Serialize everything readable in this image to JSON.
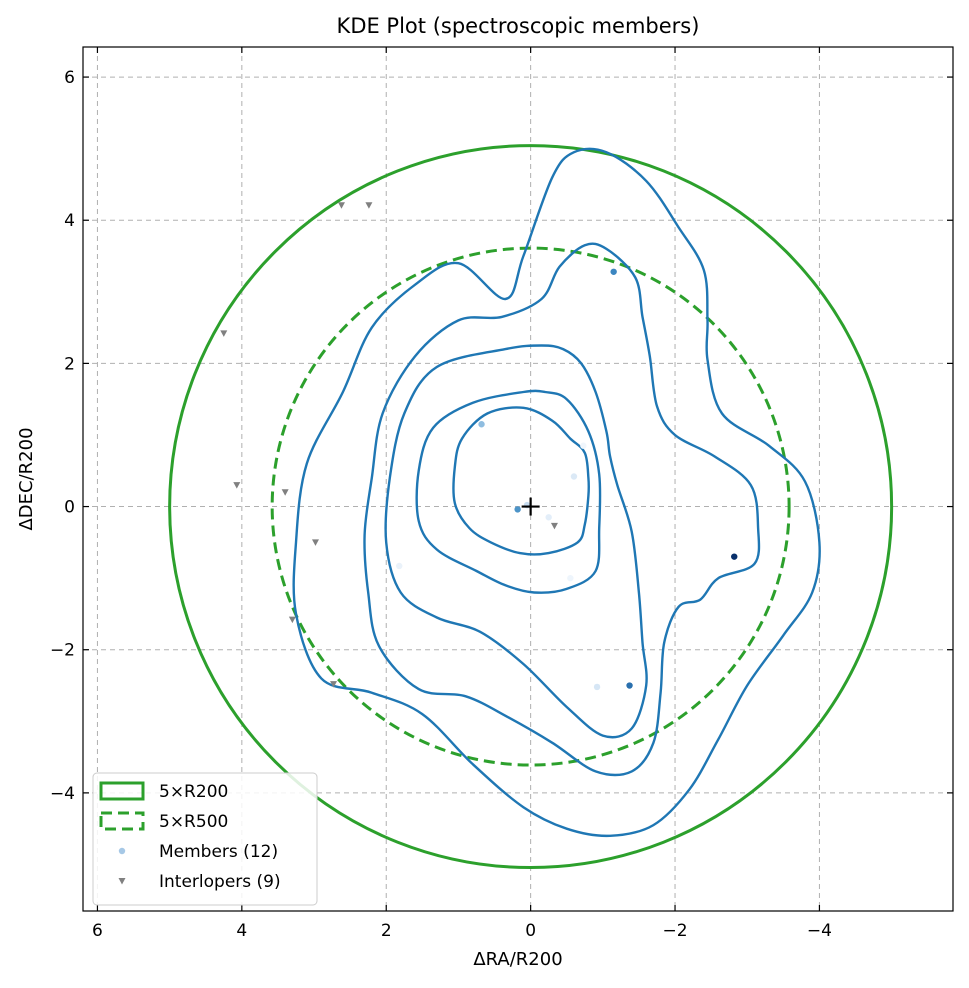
{
  "chart_data": {
    "type": "scatter",
    "title": "KDE Plot (spectroscopic members)",
    "xlabel": "ΔRA/R200",
    "ylabel": "ΔDEC/R200",
    "xlim": [
      6.2,
      -5.85
    ],
    "ylim": [
      -5.65,
      6.42
    ],
    "x_inverted": true,
    "grid": true,
    "xticks": [
      {
        "value": 6,
        "label": "6"
      },
      {
        "value": 4,
        "label": "4"
      },
      {
        "value": 2,
        "label": "2"
      },
      {
        "value": 0,
        "label": "0"
      },
      {
        "value": -2,
        "label": "−2"
      },
      {
        "value": -4,
        "label": "−4"
      }
    ],
    "yticks": [
      {
        "value": 6,
        "label": "6"
      },
      {
        "value": 4,
        "label": "4"
      },
      {
        "value": 2,
        "label": "2"
      },
      {
        "value": 0,
        "label": "0"
      },
      {
        "value": -2,
        "label": "−2"
      },
      {
        "value": -4,
        "label": "−4"
      }
    ],
    "center_marker": {
      "x": 0,
      "y": 0,
      "symbol": "+",
      "color": "#000000"
    },
    "circles": [
      {
        "name": "5×R200",
        "radius": 5.0,
        "style": "solid",
        "color": "#2ca02c"
      },
      {
        "name": "5×R500",
        "radius": 3.58,
        "style": "dashed",
        "color": "#2ca02c"
      }
    ],
    "kde_contour_color": "#1f77b4",
    "kde_contours": [
      [
        [
          0.35,
          2.9
        ],
        [
          0.1,
          3.5
        ],
        [
          -0.3,
          4.6
        ],
        [
          -0.6,
          4.95
        ],
        [
          -1.05,
          4.95
        ],
        [
          -1.6,
          4.55
        ],
        [
          -2.05,
          3.9
        ],
        [
          -2.4,
          3.3
        ],
        [
          -2.45,
          2.6
        ],
        [
          -2.45,
          2.05
        ],
        [
          -2.65,
          1.3
        ],
        [
          -3.3,
          0.85
        ],
        [
          -3.8,
          0.35
        ],
        [
          -4.0,
          -0.5
        ],
        [
          -3.9,
          -1.2
        ],
        [
          -3.5,
          -1.8
        ],
        [
          -3.0,
          -2.5
        ],
        [
          -2.6,
          -3.25
        ],
        [
          -2.2,
          -3.95
        ],
        [
          -1.7,
          -4.45
        ],
        [
          -1.1,
          -4.6
        ],
        [
          -0.5,
          -4.5
        ],
        [
          0.1,
          -4.2
        ],
        [
          0.8,
          -3.6
        ],
        [
          1.5,
          -2.9
        ],
        [
          2.2,
          -2.6
        ],
        [
          2.9,
          -2.4
        ],
        [
          3.25,
          -1.5
        ],
        [
          3.25,
          -0.5
        ],
        [
          3.1,
          0.6
        ],
        [
          2.6,
          1.6
        ],
        [
          2.2,
          2.5
        ],
        [
          1.6,
          3.1
        ],
        [
          1.0,
          3.4
        ],
        [
          0.35,
          2.9
        ]
      ],
      [
        [
          -0.15,
          2.9
        ],
        [
          -0.4,
          3.35
        ],
        [
          -0.75,
          3.65
        ],
        [
          -1.05,
          3.6
        ],
        [
          -1.45,
          3.2
        ],
        [
          -1.55,
          2.65
        ],
        [
          -1.65,
          2.1
        ],
        [
          -1.75,
          1.4
        ],
        [
          -2.0,
          1.0
        ],
        [
          -2.55,
          0.7
        ],
        [
          -3.05,
          0.3
        ],
        [
          -3.15,
          -0.3
        ],
        [
          -3.1,
          -0.8
        ],
        [
          -2.6,
          -1.0
        ],
        [
          -2.35,
          -1.3
        ],
        [
          -2.05,
          -1.4
        ],
        [
          -1.85,
          -1.9
        ],
        [
          -1.8,
          -2.6
        ],
        [
          -1.7,
          -3.3
        ],
        [
          -1.4,
          -3.7
        ],
        [
          -0.9,
          -3.7
        ],
        [
          -0.3,
          -3.3
        ],
        [
          0.3,
          -2.95
        ],
        [
          0.9,
          -2.65
        ],
        [
          1.55,
          -2.55
        ],
        [
          2.1,
          -1.95
        ],
        [
          2.25,
          -1.2
        ],
        [
          2.3,
          -0.4
        ],
        [
          2.2,
          0.4
        ],
        [
          2.05,
          1.3
        ],
        [
          1.6,
          2.1
        ],
        [
          1.0,
          2.6
        ],
        [
          0.4,
          2.65
        ],
        [
          -0.15,
          2.9
        ]
      ],
      [
        [
          0.35,
          2.2
        ],
        [
          -0.15,
          2.25
        ],
        [
          -0.45,
          2.2
        ],
        [
          -0.7,
          2.0
        ],
        [
          -0.9,
          1.6
        ],
        [
          -1.05,
          1.05
        ],
        [
          -1.1,
          0.7
        ],
        [
          -1.2,
          0.3
        ],
        [
          -1.4,
          -0.35
        ],
        [
          -1.5,
          -1.2
        ],
        [
          -1.55,
          -1.9
        ],
        [
          -1.6,
          -2.5
        ],
        [
          -1.4,
          -3.1
        ],
        [
          -1.0,
          -3.2
        ],
        [
          -0.5,
          -2.8
        ],
        [
          0.1,
          -2.2
        ],
        [
          0.7,
          -1.75
        ],
        [
          1.3,
          -1.55
        ],
        [
          1.8,
          -1.2
        ],
        [
          2.0,
          -0.5
        ],
        [
          1.95,
          0.4
        ],
        [
          1.75,
          1.3
        ],
        [
          1.3,
          1.95
        ],
        [
          0.35,
          2.2
        ]
      ],
      [
        [
          0.1,
          1.6
        ],
        [
          -0.2,
          1.6
        ],
        [
          -0.5,
          1.5
        ],
        [
          -0.8,
          1.05
        ],
        [
          -0.95,
          0.45
        ],
        [
          -0.95,
          -0.3
        ],
        [
          -0.9,
          -0.9
        ],
        [
          -0.5,
          -1.15
        ],
        [
          -0.05,
          -1.2
        ],
        [
          0.35,
          -1.1
        ],
        [
          0.75,
          -0.9
        ],
        [
          1.3,
          -0.6
        ],
        [
          1.55,
          -0.2
        ],
        [
          1.55,
          0.5
        ],
        [
          1.35,
          1.1
        ],
        [
          0.8,
          1.45
        ],
        [
          0.1,
          1.6
        ]
      ],
      [
        [
          -0.8,
          0.4
        ],
        [
          -0.8,
          0.15
        ],
        [
          -0.75,
          -0.25
        ],
        [
          -0.65,
          -0.5
        ],
        [
          -0.25,
          -0.65
        ],
        [
          0.15,
          -0.65
        ],
        [
          0.55,
          -0.5
        ],
        [
          0.85,
          -0.3
        ],
        [
          1.05,
          0.05
        ],
        [
          1.05,
          0.55
        ],
        [
          0.95,
          0.95
        ],
        [
          0.6,
          1.3
        ],
        [
          0.1,
          1.38
        ],
        [
          -0.3,
          1.2
        ],
        [
          -0.55,
          0.95
        ],
        [
          -0.75,
          0.75
        ]
      ]
    ],
    "series": [
      {
        "name": "Members (12)",
        "marker": "circle",
        "points": [
          {
            "x": 0.68,
            "y": 1.15,
            "color": "#8fbde0"
          },
          {
            "x": 0.18,
            "y": -0.04,
            "color": "#4d94c8"
          },
          {
            "x": -1.15,
            "y": 3.28,
            "color": "#3b86c0"
          },
          {
            "x": -2.82,
            "y": -0.7,
            "color": "#08306b"
          },
          {
            "x": -1.37,
            "y": -2.5,
            "color": "#2a70ae"
          },
          {
            "x": -0.92,
            "y": -2.52,
            "color": "#d6e6f5"
          },
          {
            "x": 1.82,
            "y": -0.83,
            "color": "#eaf2fa"
          },
          {
            "x": -0.73,
            "y": 0.85,
            "color": "#f0f6fc"
          },
          {
            "x": 0.05,
            "y": 0.02,
            "color": "#c6dbef"
          },
          {
            "x": -0.25,
            "y": -0.15,
            "color": "#e3eef9"
          },
          {
            "x": -0.6,
            "y": 0.42,
            "color": "#dbe9f6"
          },
          {
            "x": -0.55,
            "y": -1.0,
            "color": "#eef5fc"
          }
        ]
      },
      {
        "name": "Interlopers (9)",
        "marker": "triangle-down",
        "color": "#808080",
        "points": [
          {
            "x": 2.62,
            "y": 4.21
          },
          {
            "x": 2.24,
            "y": 4.21
          },
          {
            "x": 4.25,
            "y": 2.42
          },
          {
            "x": 4.07,
            "y": 0.3
          },
          {
            "x": 3.4,
            "y": 0.2
          },
          {
            "x": 2.98,
            "y": -0.5
          },
          {
            "x": 3.3,
            "y": -1.58
          },
          {
            "x": 2.73,
            "y": -2.48
          },
          {
            "x": -0.33,
            "y": -0.27
          }
        ]
      }
    ],
    "legend": {
      "position": "lower-left",
      "entries": [
        {
          "label": "5×R200",
          "kind": "solid-box"
        },
        {
          "label": "5×R500",
          "kind": "dashed-box"
        },
        {
          "label": "Members (12)",
          "kind": "member-dot"
        },
        {
          "label": "Interlopers (9)",
          "kind": "interloper-triangle"
        }
      ]
    }
  }
}
